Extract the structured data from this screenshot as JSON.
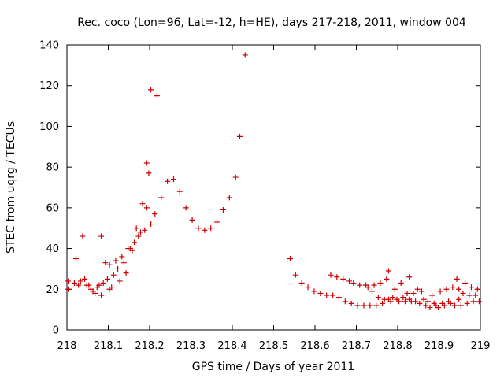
{
  "chart_data": {
    "type": "scatter",
    "title": "Rec. coco (Lon=96, Lat=-12, h=HE), days 217-218, 2011, window 004",
    "xlabel": "GPS time / Days of year 2011",
    "ylabel": "STEC from uqrg / TECUs",
    "xlim": [
      218,
      219
    ],
    "ylim": [
      0,
      140
    ],
    "xticks": [
      "218",
      "218.1",
      "218.2",
      "218.3",
      "218.4",
      "218.5",
      "218.6",
      "218.7",
      "218.8",
      "218.9",
      "219"
    ],
    "yticks": [
      "0",
      "20",
      "40",
      "60",
      "80",
      "100",
      "120",
      "140"
    ],
    "grid": false,
    "legend": "none",
    "marker": "plus",
    "color": "#cc0000",
    "series": [
      {
        "points": [
          [
            218.003,
            20
          ],
          [
            218.003,
            24
          ],
          [
            218.018,
            23
          ],
          [
            218.022,
            35
          ],
          [
            218.028,
            22
          ],
          [
            218.033,
            24
          ],
          [
            218.038,
            46
          ],
          [
            218.043,
            25
          ],
          [
            218.048,
            22
          ],
          [
            218.053,
            22
          ],
          [
            218.058,
            20
          ],
          [
            218.063,
            19
          ],
          [
            218.068,
            18
          ],
          [
            218.073,
            21
          ],
          [
            218.078,
            22
          ],
          [
            218.083,
            46
          ],
          [
            218.083,
            17
          ],
          [
            218.088,
            23
          ],
          [
            218.093,
            33
          ],
          [
            218.098,
            25
          ],
          [
            218.103,
            20
          ],
          [
            218.103,
            32
          ],
          [
            218.108,
            21
          ],
          [
            218.113,
            27
          ],
          [
            218.118,
            34
          ],
          [
            218.123,
            30
          ],
          [
            218.128,
            24
          ],
          [
            218.133,
            36
          ],
          [
            218.138,
            33
          ],
          [
            218.143,
            28
          ],
          [
            218.148,
            40
          ],
          [
            218.153,
            40
          ],
          [
            218.158,
            39
          ],
          [
            218.163,
            43
          ],
          [
            218.168,
            50
          ],
          [
            218.173,
            46
          ],
          [
            218.178,
            48
          ],
          [
            218.183,
            62
          ],
          [
            218.188,
            49
          ],
          [
            218.193,
            60
          ],
          [
            218.193,
            82
          ],
          [
            218.198,
            77
          ],
          [
            218.203,
            52
          ],
          [
            218.203,
            118
          ],
          [
            218.213,
            57
          ],
          [
            218.218,
            115
          ],
          [
            218.228,
            65
          ],
          [
            218.243,
            73
          ],
          [
            218.258,
            74
          ],
          [
            218.273,
            68
          ],
          [
            218.288,
            60
          ],
          [
            218.303,
            54
          ],
          [
            218.318,
            50
          ],
          [
            218.333,
            49
          ],
          [
            218.348,
            50
          ],
          [
            218.363,
            53
          ],
          [
            218.378,
            59
          ],
          [
            218.393,
            65
          ],
          [
            218.408,
            75
          ],
          [
            218.418,
            95
          ],
          [
            218.431,
            135
          ],
          [
            218.54,
            35
          ],
          [
            218.553,
            27
          ],
          [
            218.568,
            23
          ],
          [
            218.583,
            21
          ],
          [
            218.598,
            19
          ],
          [
            218.613,
            18
          ],
          [
            218.628,
            17
          ],
          [
            218.638,
            27
          ],
          [
            218.643,
            17
          ],
          [
            218.653,
            26
          ],
          [
            218.658,
            16
          ],
          [
            218.668,
            25
          ],
          [
            218.673,
            14
          ],
          [
            218.683,
            24
          ],
          [
            218.688,
            13
          ],
          [
            218.693,
            23
          ],
          [
            218.703,
            12
          ],
          [
            218.708,
            22
          ],
          [
            218.718,
            12
          ],
          [
            218.723,
            22
          ],
          [
            218.728,
            21
          ],
          [
            218.733,
            12
          ],
          [
            218.738,
            19
          ],
          [
            218.743,
            22
          ],
          [
            218.748,
            12
          ],
          [
            218.753,
            16
          ],
          [
            218.758,
            23
          ],
          [
            218.763,
            13
          ],
          [
            218.768,
            15
          ],
          [
            218.773,
            25
          ],
          [
            218.778,
            15
          ],
          [
            218.778,
            29
          ],
          [
            218.783,
            14
          ],
          [
            218.788,
            16
          ],
          [
            218.793,
            20
          ],
          [
            218.798,
            15
          ],
          [
            218.803,
            14
          ],
          [
            218.808,
            23
          ],
          [
            218.813,
            16
          ],
          [
            218.818,
            14
          ],
          [
            218.823,
            18
          ],
          [
            218.828,
            26
          ],
          [
            218.828,
            15
          ],
          [
            218.833,
            14
          ],
          [
            218.838,
            18
          ],
          [
            218.843,
            14
          ],
          [
            218.848,
            20
          ],
          [
            218.853,
            13
          ],
          [
            218.858,
            19
          ],
          [
            218.863,
            15
          ],
          [
            218.868,
            12
          ],
          [
            218.873,
            14
          ],
          [
            218.878,
            11
          ],
          [
            218.883,
            17
          ],
          [
            218.888,
            13
          ],
          [
            218.893,
            12
          ],
          [
            218.898,
            11
          ],
          [
            218.903,
            19
          ],
          [
            218.908,
            13
          ],
          [
            218.913,
            12
          ],
          [
            218.918,
            20
          ],
          [
            218.923,
            14
          ],
          [
            218.928,
            13
          ],
          [
            218.933,
            21
          ],
          [
            218.938,
            12
          ],
          [
            218.943,
            25
          ],
          [
            218.948,
            15
          ],
          [
            218.948,
            20
          ],
          [
            218.953,
            12
          ],
          [
            218.958,
            18
          ],
          [
            218.963,
            23
          ],
          [
            218.968,
            13
          ],
          [
            218.973,
            17
          ],
          [
            218.978,
            21
          ],
          [
            218.983,
            14
          ],
          [
            218.988,
            17
          ],
          [
            218.993,
            20
          ],
          [
            218.997,
            14
          ]
        ]
      }
    ]
  }
}
